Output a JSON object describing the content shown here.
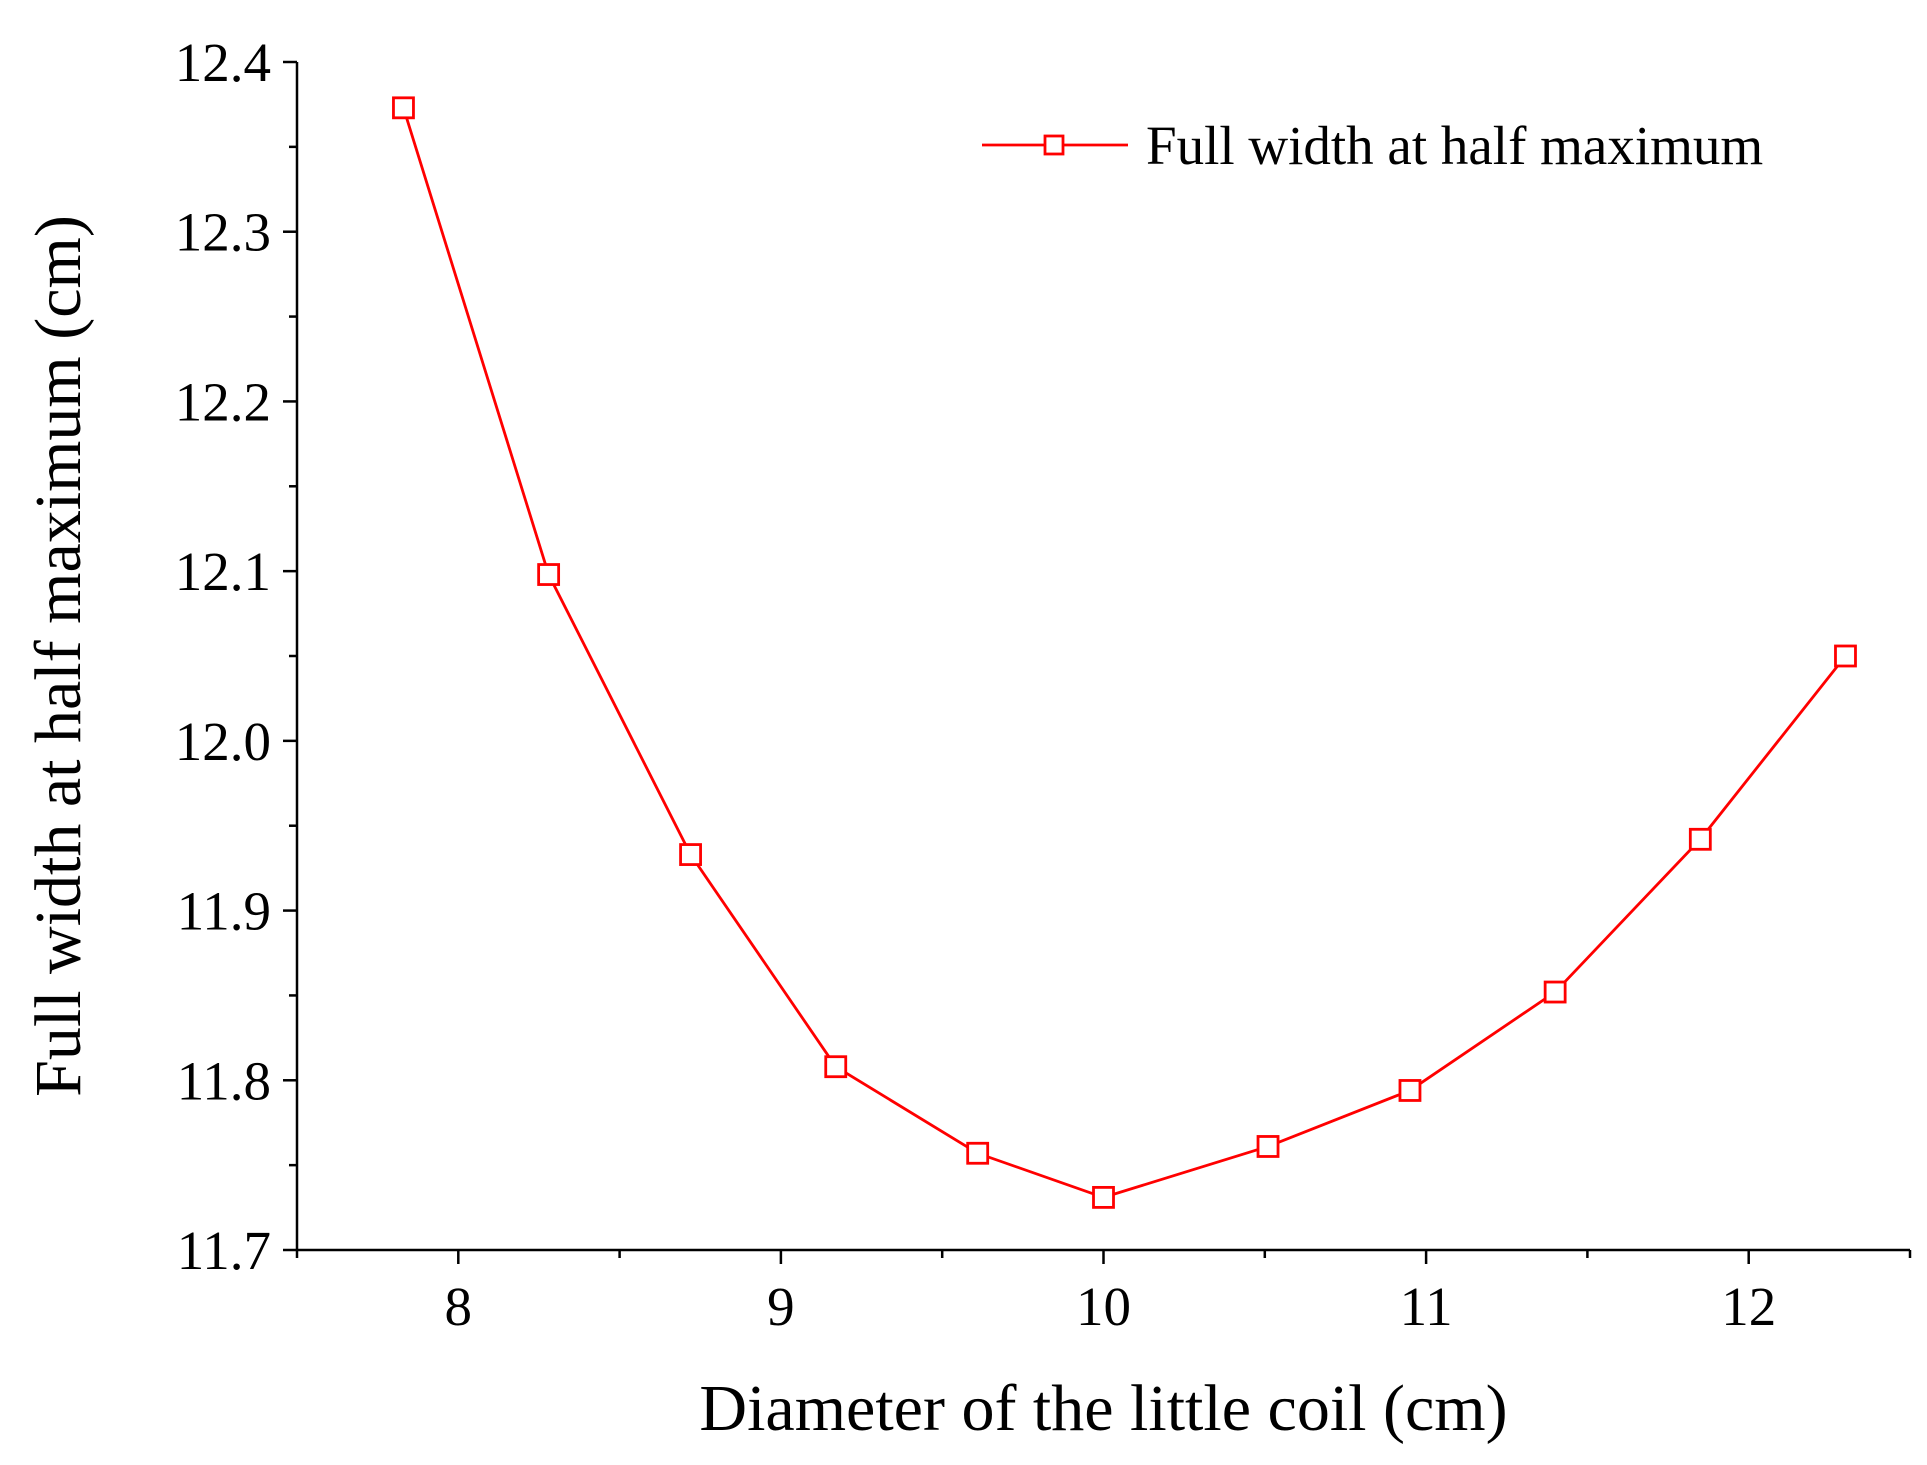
{
  "chart_data": {
    "type": "line",
    "title": "",
    "xlabel": "Diameter of the little coil (cm)",
    "ylabel": "Full width at half maximum (cm)",
    "xlim": [
      7.5,
      12.5
    ],
    "ylim": [
      11.7,
      12.4
    ],
    "x_major_ticks": [
      8,
      9,
      10,
      11,
      12
    ],
    "x_tick_labels": [
      "8",
      "9",
      "10",
      "11",
      "12"
    ],
    "y_major_ticks": [
      11.7,
      11.8,
      11.9,
      12.0,
      12.1,
      12.2,
      12.3,
      12.4
    ],
    "y_tick_labels": [
      "11.7",
      "11.8",
      "11.9",
      "12.0",
      "12.1",
      "12.2",
      "12.3",
      "12.4"
    ],
    "legend_position": "top-right",
    "series": [
      {
        "name": "Full width at half maximum",
        "color": "#ff0000",
        "marker": "open-square",
        "x": [
          7.83,
          8.28,
          8.72,
          9.17,
          9.61,
          10.0,
          10.51,
          10.95,
          11.4,
          11.85,
          12.3
        ],
        "y": [
          12.373,
          12.098,
          11.933,
          11.808,
          11.757,
          11.731,
          11.761,
          11.794,
          11.852,
          11.942,
          12.05
        ]
      }
    ]
  }
}
